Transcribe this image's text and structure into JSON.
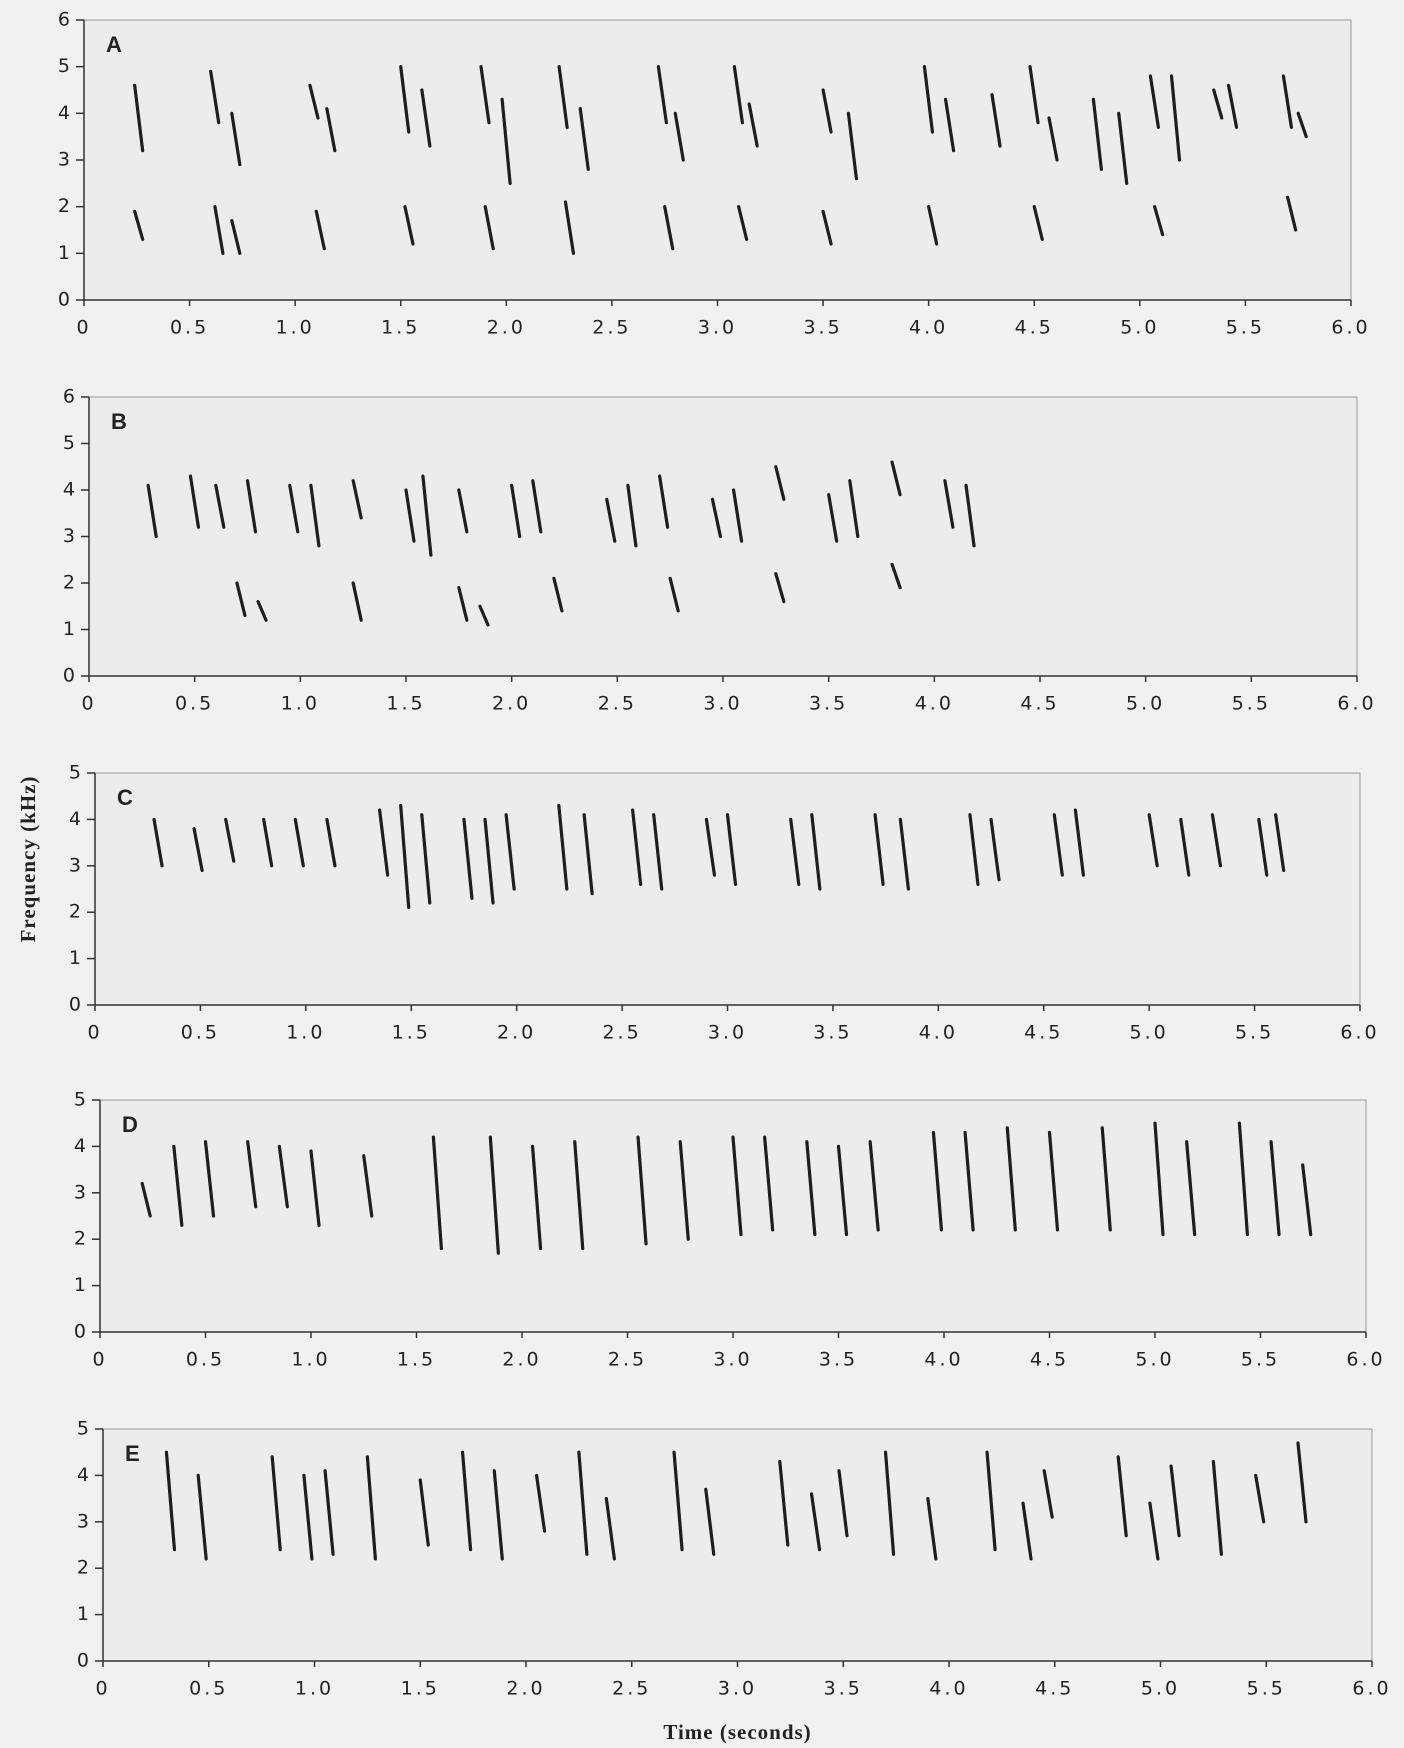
{
  "chart_data": [
    {
      "type": "spectrogram",
      "label": "A",
      "xlim": [
        0,
        6
      ],
      "ylim": [
        0,
        6
      ],
      "xticks": [
        0,
        0.5,
        {
          "value": 1,
          "label": "1.0"
        },
        1.5,
        {
          "value": 2,
          "label": "2.0"
        },
        2.5,
        {
          "value": 3,
          "label": "3.0"
        },
        3.5,
        {
          "value": 4,
          "label": "4.0"
        },
        4.5,
        {
          "value": 5,
          "label": "5.0"
        },
        5.5,
        {
          "value": 6,
          "label": "6.0"
        }
      ],
      "yticks": [
        0,
        1,
        2,
        3,
        4,
        5,
        6
      ],
      "syllables": {
        "t": [
          0.24,
          0.24,
          0.6,
          0.62,
          0.7,
          0.7,
          1.07,
          1.1,
          1.15,
          1.5,
          1.52,
          1.6,
          1.88,
          1.9,
          1.98,
          2.25,
          2.28,
          2.35,
          2.72,
          2.75,
          2.8,
          3.08,
          3.1,
          3.15,
          3.5,
          3.5,
          3.62,
          3.98,
          4.0,
          4.08,
          4.3,
          4.48,
          4.5,
          4.57,
          4.78,
          4.9,
          5.05,
          5.07,
          5.15,
          5.35,
          5.42,
          5.68,
          5.7,
          5.75
        ],
        "f_low": [
          3.2,
          1.3,
          3.8,
          1.0,
          2.9,
          1.0,
          3.9,
          1.1,
          3.2,
          3.6,
          1.2,
          3.3,
          3.8,
          1.1,
          2.5,
          3.7,
          1.0,
          2.8,
          3.8,
          1.1,
          3.0,
          3.8,
          1.3,
          3.3,
          3.6,
          1.2,
          2.6,
          3.6,
          1.2,
          3.2,
          3.3,
          3.8,
          1.3,
          3.0,
          2.8,
          2.5,
          3.7,
          1.4,
          3.0,
          3.9,
          3.7,
          3.7,
          1.5,
          3.5
        ],
        "f_high": [
          4.6,
          1.9,
          4.9,
          2.0,
          4.0,
          1.7,
          4.6,
          1.9,
          4.1,
          5.0,
          2.0,
          4.5,
          5.0,
          2.0,
          4.3,
          5.0,
          2.1,
          4.1,
          5.0,
          2.0,
          4.0,
          5.0,
          2.0,
          4.2,
          4.5,
          1.9,
          4.0,
          5.0,
          2.0,
          4.3,
          4.4,
          5.0,
          2.0,
          3.9,
          4.3,
          4.0,
          4.8,
          2.0,
          4.8,
          4.5,
          4.6,
          4.8,
          2.2,
          4.0
        ]
      }
    },
    {
      "type": "spectrogram",
      "label": "B",
      "xlim": [
        0,
        6
      ],
      "ylim": [
        0,
        6
      ],
      "xticks": [
        0,
        0.5,
        {
          "value": 1,
          "label": "1.0"
        },
        1.5,
        {
          "value": 2,
          "label": "2.0"
        },
        2.5,
        {
          "value": 3,
          "label": "3.0"
        },
        3.5,
        {
          "value": 4,
          "label": "4.0"
        },
        4.5,
        {
          "value": 5,
          "label": "5.0"
        },
        5.5,
        {
          "value": 6,
          "label": "6.0"
        }
      ],
      "yticks": [
        0,
        1,
        2,
        3,
        4,
        5,
        6
      ],
      "syllables": {
        "t": [
          0.28,
          0.48,
          0.6,
          0.7,
          0.75,
          0.8,
          0.95,
          1.05,
          1.25,
          1.25,
          1.5,
          1.58,
          1.75,
          1.75,
          1.85,
          2.0,
          2.1,
          2.2,
          2.45,
          2.55,
          2.7,
          2.75,
          2.95,
          3.05,
          3.25,
          3.25,
          3.5,
          3.6,
          3.8,
          3.8,
          4.05,
          4.15
        ],
        "f_low": [
          3.0,
          3.2,
          3.2,
          1.3,
          3.1,
          1.2,
          3.1,
          2.8,
          3.4,
          1.2,
          2.9,
          2.6,
          3.1,
          1.2,
          1.1,
          3.0,
          3.1,
          1.4,
          2.9,
          2.8,
          3.2,
          1.4,
          3.0,
          2.9,
          3.8,
          1.6,
          2.9,
          3.0,
          3.9,
          1.9,
          3.2,
          2.8
        ],
        "f_high": [
          4.1,
          4.3,
          4.1,
          2.0,
          4.2,
          1.6,
          4.1,
          4.1,
          4.2,
          2.0,
          4.0,
          4.3,
          4.0,
          1.9,
          1.5,
          4.1,
          4.2,
          2.1,
          3.8,
          4.1,
          4.3,
          2.1,
          3.8,
          4.0,
          4.5,
          2.2,
          3.9,
          4.2,
          4.6,
          2.4,
          4.2,
          4.1
        ]
      }
    },
    {
      "type": "spectrogram",
      "label": "C",
      "ylabel": "Frequency (kHz)",
      "xlim": [
        0,
        6
      ],
      "ylim": [
        0,
        5
      ],
      "xticks": [
        0,
        0.5,
        {
          "value": 1,
          "label": "1.0"
        },
        1.5,
        {
          "value": 2,
          "label": "2.0"
        },
        2.5,
        {
          "value": 3,
          "label": "3.0"
        },
        3.5,
        {
          "value": 4,
          "label": "4.0"
        },
        4.5,
        {
          "value": 5,
          "label": "5.0"
        },
        5.5,
        {
          "value": 6,
          "label": "6.0"
        }
      ],
      "yticks": [
        0,
        1,
        2,
        3,
        4,
        5
      ],
      "syllables": {
        "t": [
          0.28,
          0.47,
          0.62,
          0.8,
          0.95,
          1.1,
          1.35,
          1.45,
          1.55,
          1.75,
          1.85,
          1.95,
          2.2,
          2.32,
          2.55,
          2.65,
          2.9,
          3.0,
          3.3,
          3.4,
          3.7,
          3.82,
          4.15,
          4.25,
          4.55,
          4.65,
          5.0,
          5.15,
          5.3,
          5.52,
          5.6
        ],
        "f_low": [
          3.0,
          2.9,
          3.1,
          3.0,
          3.0,
          3.0,
          2.8,
          2.1,
          2.2,
          2.3,
          2.2,
          2.5,
          2.5,
          2.4,
          2.6,
          2.5,
          2.8,
          2.6,
          2.6,
          2.5,
          2.6,
          2.5,
          2.6,
          2.7,
          2.8,
          2.8,
          3.0,
          2.8,
          3.0,
          2.8,
          2.9
        ],
        "f_high": [
          4.0,
          3.8,
          4.0,
          4.0,
          4.0,
          4.0,
          4.2,
          4.3,
          4.1,
          4.0,
          4.0,
          4.1,
          4.3,
          4.1,
          4.2,
          4.1,
          4.0,
          4.1,
          4.0,
          4.1,
          4.1,
          4.0,
          4.1,
          4.0,
          4.1,
          4.2,
          4.1,
          4.0,
          4.1,
          4.0,
          4.1
        ]
      }
    },
    {
      "type": "spectrogram",
      "label": "D",
      "xlim": [
        0,
        6
      ],
      "ylim": [
        0,
        5
      ],
      "xticks": [
        0,
        0.5,
        {
          "value": 1,
          "label": "1.0"
        },
        1.5,
        {
          "value": 2,
          "label": "2.0"
        },
        2.5,
        {
          "value": 3,
          "label": "3.0"
        },
        3.5,
        {
          "value": 4,
          "label": "4.0"
        },
        4.5,
        {
          "value": 5,
          "label": "5.0"
        },
        5.5,
        {
          "value": 6,
          "label": "6.0"
        }
      ],
      "yticks": [
        0,
        1,
        2,
        3,
        4,
        5
      ],
      "syllables": {
        "t": [
          0.2,
          0.35,
          0.5,
          0.7,
          0.85,
          1.0,
          1.25,
          1.58,
          1.85,
          2.05,
          2.25,
          2.55,
          2.75,
          3.0,
          3.15,
          3.35,
          3.5,
          3.65,
          3.95,
          4.1,
          4.3,
          4.5,
          4.75,
          5.0,
          5.15,
          5.4,
          5.55,
          5.7
        ],
        "f_low": [
          2.5,
          2.3,
          2.5,
          2.7,
          2.7,
          2.3,
          2.5,
          1.8,
          1.7,
          1.8,
          1.8,
          1.9,
          2.0,
          2.1,
          2.2,
          2.1,
          2.1,
          2.2,
          2.2,
          2.2,
          2.2,
          2.2,
          2.2,
          2.1,
          2.1,
          2.1,
          2.1,
          2.1
        ],
        "f_high": [
          3.2,
          4.0,
          4.1,
          4.1,
          4.0,
          3.9,
          3.8,
          4.2,
          4.2,
          4.0,
          4.1,
          4.2,
          4.1,
          4.2,
          4.2,
          4.1,
          4.0,
          4.1,
          4.3,
          4.3,
          4.4,
          4.3,
          4.4,
          4.5,
          4.1,
          4.5,
          4.1,
          3.6
        ]
      }
    },
    {
      "type": "spectrogram",
      "label": "E",
      "xlabel": "Time (seconds)",
      "xlim": [
        0,
        6
      ],
      "ylim": [
        0,
        5
      ],
      "xticks": [
        0,
        0.5,
        {
          "value": 1,
          "label": "1.0"
        },
        1.5,
        {
          "value": 2,
          "label": "2.0"
        },
        2.5,
        {
          "value": 3,
          "label": "3.0"
        },
        3.5,
        {
          "value": 4,
          "label": "4.0"
        },
        4.5,
        {
          "value": 5,
          "label": "5.0"
        },
        5.5,
        {
          "value": 6,
          "label": "6.0"
        }
      ],
      "yticks": [
        0,
        1,
        2,
        3,
        4,
        5
      ],
      "syllables": {
        "t": [
          0.3,
          0.45,
          0.8,
          0.95,
          1.05,
          1.25,
          1.5,
          1.7,
          1.85,
          2.05,
          2.25,
          2.38,
          2.7,
          2.85,
          3.2,
          3.35,
          3.48,
          3.7,
          3.9,
          4.18,
          4.35,
          4.45,
          4.8,
          4.95,
          5.05,
          5.25,
          5.45,
          5.65
        ],
        "f_low": [
          2.4,
          2.2,
          2.4,
          2.2,
          2.3,
          2.2,
          2.5,
          2.4,
          2.2,
          2.8,
          2.3,
          2.2,
          2.4,
          2.3,
          2.5,
          2.4,
          2.7,
          2.3,
          2.2,
          2.4,
          2.2,
          3.1,
          2.7,
          2.2,
          2.7,
          2.3,
          3.0,
          3.0
        ],
        "f_high": [
          4.5,
          4.0,
          4.4,
          4.0,
          4.1,
          4.4,
          3.9,
          4.5,
          4.1,
          4.0,
          4.5,
          3.5,
          4.5,
          3.7,
          4.3,
          3.6,
          4.1,
          4.5,
          3.5,
          4.5,
          3.4,
          4.1,
          4.4,
          3.4,
          4.2,
          4.3,
          4.0,
          4.7
        ]
      }
    }
  ]
}
